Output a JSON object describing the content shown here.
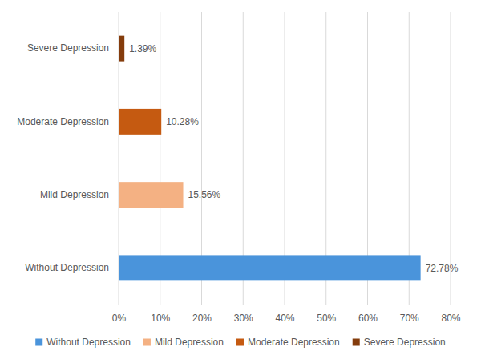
{
  "chart_data": {
    "type": "bar",
    "orientation": "horizontal",
    "categories": [
      "Without Depression",
      "Mild Depression",
      "Moderate Depression",
      "Severe Depression"
    ],
    "values": [
      72.78,
      15.56,
      10.28,
      1.39
    ],
    "value_labels": [
      "72.78%",
      "15.56%",
      "10.28%",
      "1.39%"
    ],
    "colors": [
      "#4a94db",
      "#f4b183",
      "#c55a11",
      "#843c0c"
    ],
    "xlim": [
      0,
      80
    ],
    "xticks": [
      {
        "value": 0,
        "label": "0%"
      },
      {
        "value": 10,
        "label": "10%"
      },
      {
        "value": 20,
        "label": "20%"
      },
      {
        "value": 30,
        "label": "30%"
      },
      {
        "value": 40,
        "label": "40%"
      },
      {
        "value": 50,
        "label": "50%"
      },
      {
        "value": 60,
        "label": "60%"
      },
      {
        "value": 70,
        "label": "70%"
      },
      {
        "value": 80,
        "label": "80%"
      }
    ],
    "grid": true,
    "data_labels": true,
    "legend": "bottom"
  }
}
